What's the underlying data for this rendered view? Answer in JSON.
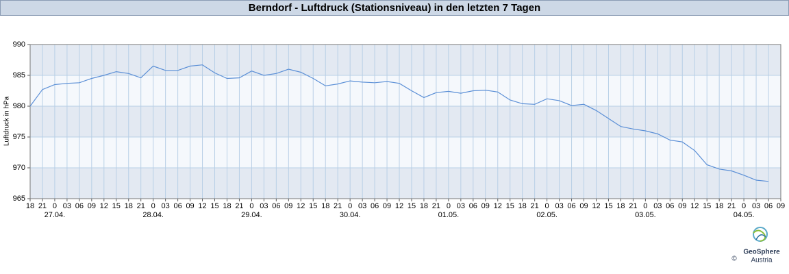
{
  "header": {
    "title": "Berndorf - Luftdruck (Stationsniveau) in den letzten 7 Tagen"
  },
  "chart_data": {
    "type": "line",
    "y_label": "Luftdruck in hPa",
    "color": "#5b8fd6",
    "grid": true,
    "ylim": [
      965,
      990
    ],
    "yticks": [
      965,
      970,
      975,
      980,
      985,
      990
    ],
    "days": [
      {
        "label": null,
        "hours": [
          "18",
          "21"
        ],
        "values": [
          980.0,
          982.7
        ]
      },
      {
        "label": "27.04.",
        "hours": [
          "0",
          "03",
          "06",
          "09",
          "12",
          "15",
          "18",
          "21"
        ],
        "values": [
          983.5,
          983.7,
          983.8,
          984.5,
          985.0,
          985.6,
          985.3,
          984.6
        ]
      },
      {
        "label": "28.04.",
        "hours": [
          "0",
          "03",
          "06",
          "09",
          "12",
          "15",
          "18",
          "21"
        ],
        "values": [
          986.5,
          985.8,
          985.8,
          986.5,
          986.7,
          985.4,
          984.5,
          984.6
        ]
      },
      {
        "label": "29.04.",
        "hours": [
          "0",
          "03",
          "06",
          "09",
          "12",
          "15",
          "18",
          "21"
        ],
        "values": [
          985.7,
          985.0,
          985.3,
          986.0,
          985.5,
          984.5,
          983.3,
          983.6
        ]
      },
      {
        "label": "30.04.",
        "hours": [
          "0",
          "03",
          "06",
          "09",
          "12",
          "15",
          "18",
          "21"
        ],
        "values": [
          984.1,
          983.9,
          983.8,
          984.0,
          983.7,
          982.5,
          981.4,
          982.2
        ]
      },
      {
        "label": "01.05.",
        "hours": [
          "0",
          "03",
          "06",
          "09",
          "12",
          "15",
          "18",
          "21"
        ],
        "values": [
          982.4,
          982.1,
          982.5,
          982.6,
          982.3,
          981.0,
          980.4,
          980.3
        ]
      },
      {
        "label": "02.05.",
        "hours": [
          "0",
          "03",
          "06",
          "09",
          "12",
          "15",
          "18",
          "21"
        ],
        "values": [
          981.2,
          980.9,
          980.1,
          980.3,
          979.3,
          978.0,
          976.7,
          976.3
        ]
      },
      {
        "label": "03.05.",
        "hours": [
          "0",
          "03",
          "06",
          "09",
          "12",
          "15",
          "18",
          "21"
        ],
        "values": [
          976.0,
          975.5,
          974.5,
          974.2,
          972.8,
          970.5,
          969.8,
          969.5
        ]
      },
      {
        "label": "04.05.",
        "hours": [
          "0",
          "03",
          "06",
          "09"
        ],
        "values": [
          968.8,
          968.0,
          967.8,
          null
        ]
      }
    ]
  },
  "logo": {
    "name": "GeoSphere",
    "subtitle": "Austria",
    "copyright": "©"
  }
}
